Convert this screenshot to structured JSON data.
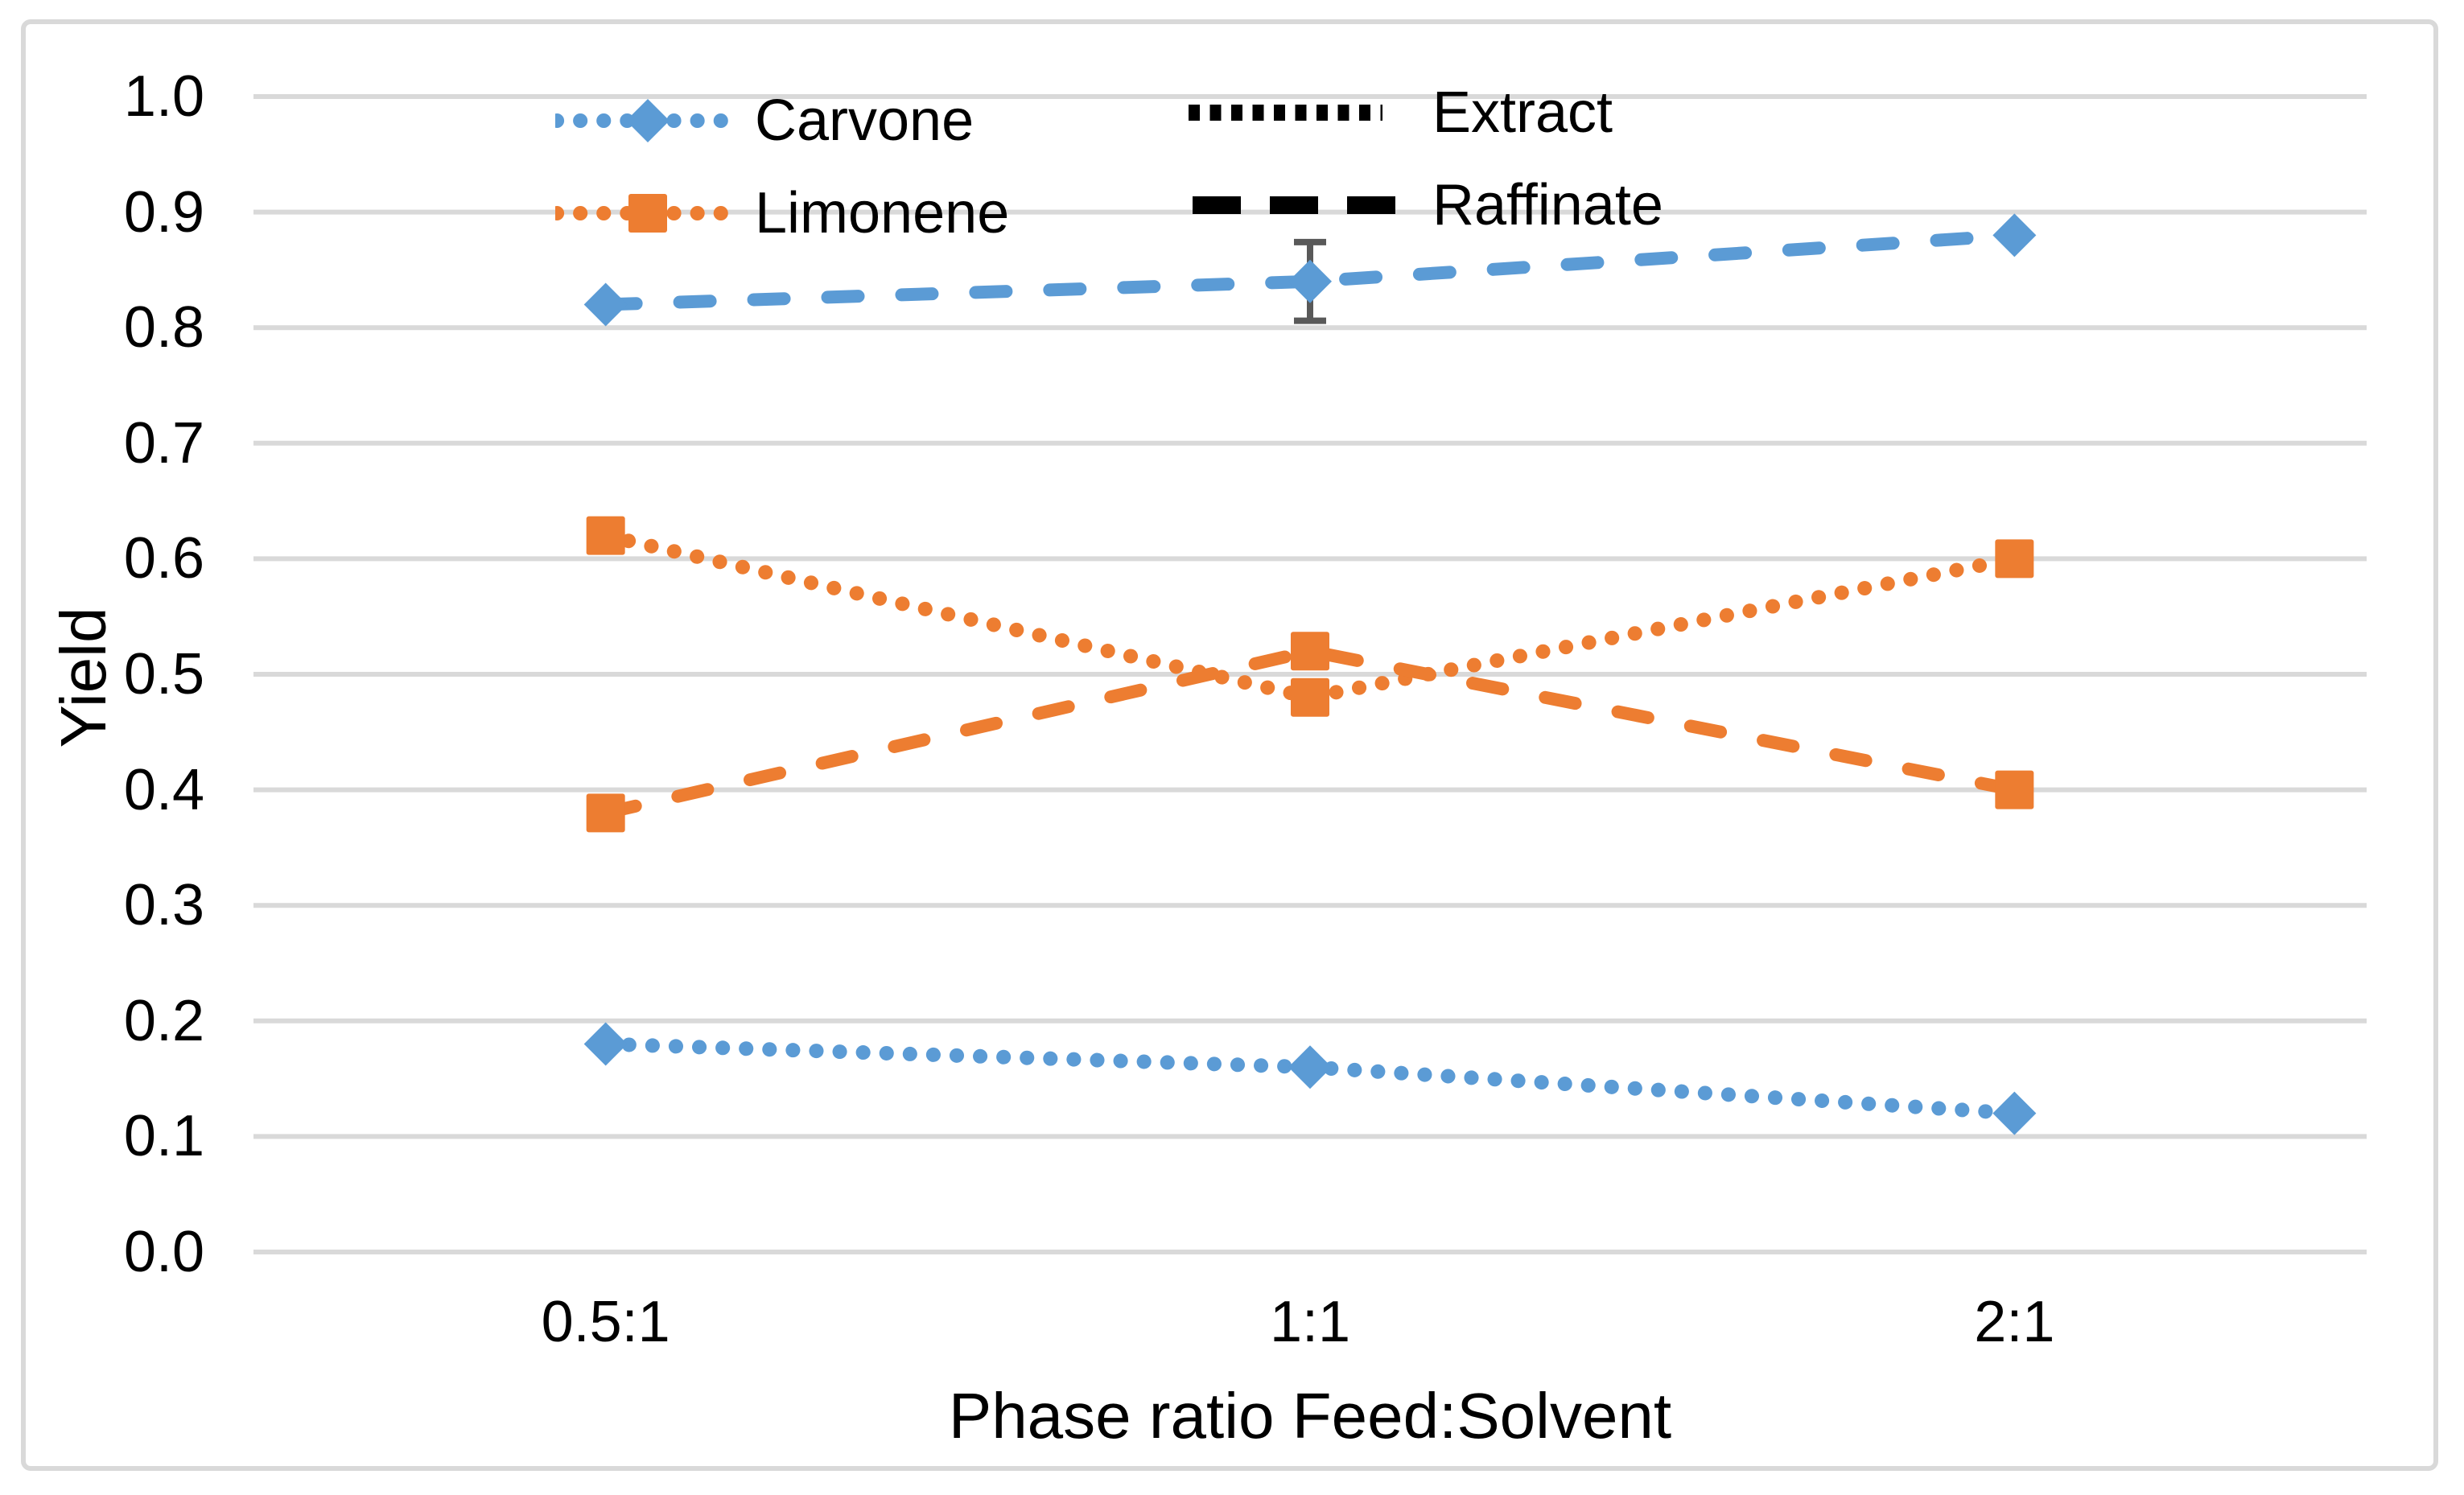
{
  "chart_data": {
    "type": "line",
    "title": "",
    "xlabel": "Phase ratio Feed:Solvent",
    "ylabel": "Yield",
    "categories": [
      "0.5:1",
      "1:1",
      "2:1"
    ],
    "ylim": [
      0.0,
      1.0
    ],
    "ytick_step": 0.1,
    "yticks": [
      "0.0",
      "0.1",
      "0.2",
      "0.3",
      "0.4",
      "0.5",
      "0.6",
      "0.7",
      "0.8",
      "0.9",
      "1.0"
    ],
    "grid": true,
    "series": [
      {
        "name": "Carvone Raffinate",
        "compound": "Carvone",
        "phase": "Raffinate",
        "color": "#5B9BD5",
        "line_style": "dashed",
        "marker": "diamond",
        "values": [
          0.82,
          0.84,
          0.88
        ],
        "error_bars": [
          null,
          0.034,
          null
        ]
      },
      {
        "name": "Limonene Extract",
        "compound": "Limonene",
        "phase": "Extract",
        "color": "#ED7D31",
        "line_style": "dotted",
        "marker": "square",
        "values": [
          0.62,
          0.48,
          0.6
        ],
        "error_bars": null
      },
      {
        "name": "Limonene Raffinate",
        "compound": "Limonene",
        "phase": "Raffinate",
        "color": "#ED7D31",
        "line_style": "dashed",
        "marker": "square",
        "values": [
          0.38,
          0.52,
          0.4
        ],
        "error_bars": null
      },
      {
        "name": "Carvone Extract",
        "compound": "Carvone",
        "phase": "Extract",
        "color": "#5B9BD5",
        "line_style": "dotted",
        "marker": "diamond",
        "values": [
          0.18,
          0.16,
          0.12
        ],
        "error_bars": null
      }
    ],
    "legend": {
      "position": "top-inside",
      "compounds": [
        {
          "label": "Carvone",
          "color": "#5B9BD5",
          "marker": "diamond",
          "line_style": "dotted"
        },
        {
          "label": "Limonene",
          "color": "#ED7D31",
          "marker": "square",
          "line_style": "dotted"
        }
      ],
      "phases": [
        {
          "label": "Extract",
          "color": "#000000",
          "line_style": "dotted"
        },
        {
          "label": "Raffinate",
          "color": "#000000",
          "line_style": "dashed"
        }
      ]
    },
    "colors": {
      "grid": "#D9D9D9",
      "border": "#D9D9D9",
      "error_bar": "#595959",
      "text": "#000000",
      "background": "#FFFFFF",
      "series_blue": "#5B9BD5",
      "series_orange": "#ED7D31"
    }
  }
}
